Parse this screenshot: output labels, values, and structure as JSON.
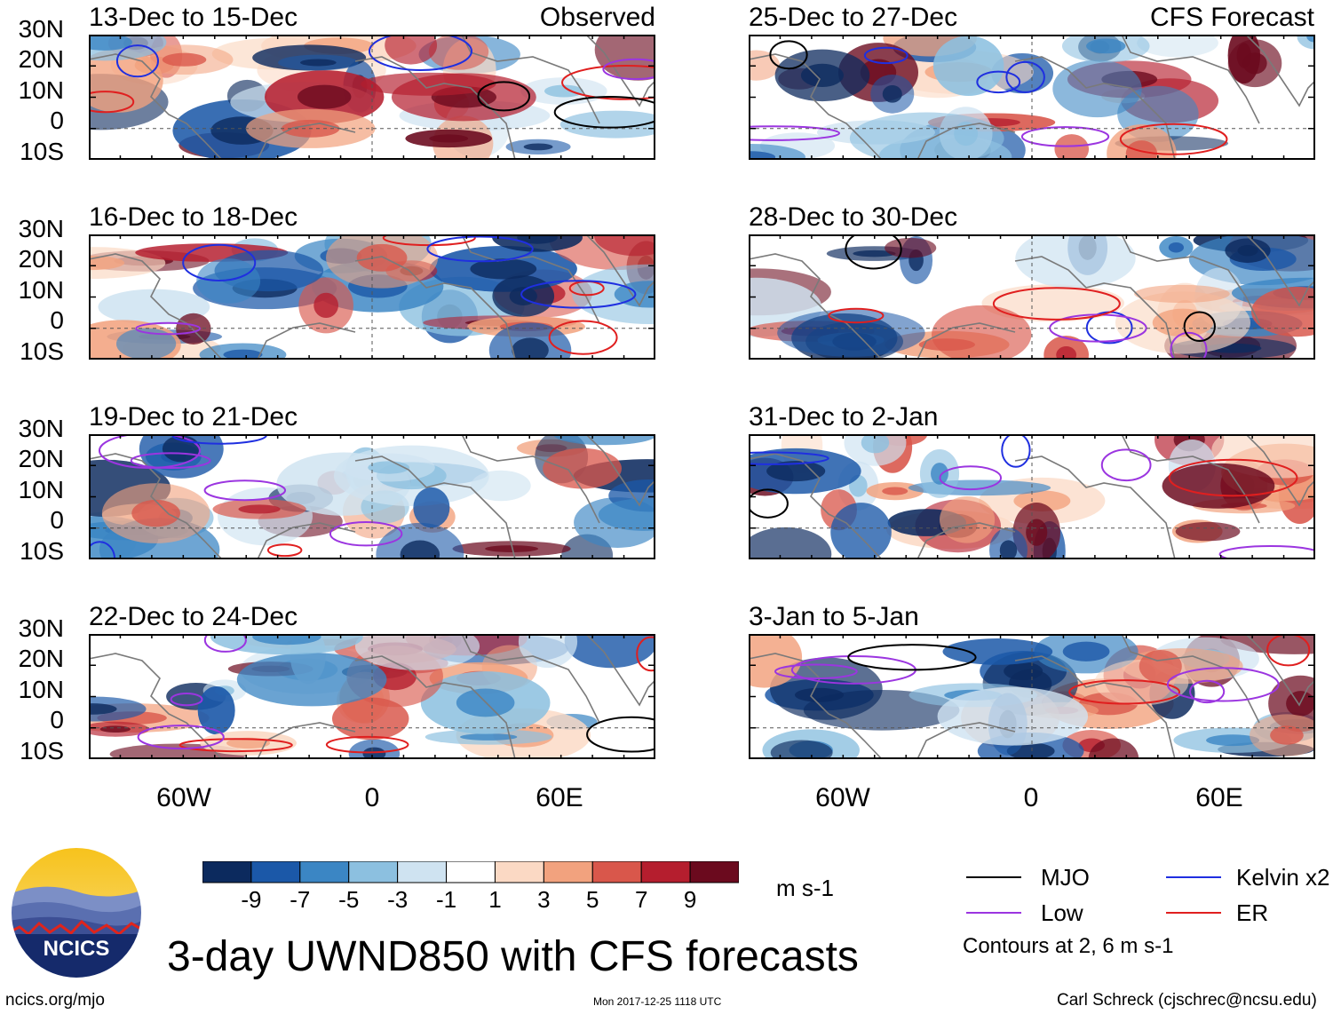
{
  "panels": [
    {
      "title": "13-Dec to 15-Dec",
      "tag": "Observed"
    },
    {
      "title": "25-Dec to 27-Dec",
      "tag": "CFS Forecast"
    },
    {
      "title": "16-Dec to 18-Dec",
      "tag": ""
    },
    {
      "title": "28-Dec to 30-Dec",
      "tag": ""
    },
    {
      "title": "19-Dec to 21-Dec",
      "tag": ""
    },
    {
      "title": "31-Dec to 2-Jan",
      "tag": ""
    },
    {
      "title": "22-Dec to 24-Dec",
      "tag": ""
    },
    {
      "title": "3-Jan to 5-Jan",
      "tag": ""
    }
  ],
  "lat_labels": [
    "30N",
    "20N",
    "10N",
    "0",
    "10S"
  ],
  "lon_labels": [
    "60W",
    "0",
    "60E"
  ],
  "colorbar": {
    "ticks": [
      "-9",
      "-7",
      "-5",
      "-3",
      "-1",
      "1",
      "3",
      "5",
      "7",
      "9"
    ],
    "colors": [
      "#0c2a5e",
      "#1b58a8",
      "#3b86c4",
      "#8cc0e0",
      "#cfe3f1",
      "#ffffff",
      "#fbd9c4",
      "#f2a27e",
      "#d9574b",
      "#b51e2e",
      "#6b0a1e"
    ],
    "units": "m s-1"
  },
  "legend": {
    "mjo": {
      "label": "MJO",
      "color": "#000000"
    },
    "kelvin": {
      "label": "Kelvin x2",
      "color": "#1f2fe0"
    },
    "low": {
      "label": "Low",
      "color": "#9b35e0"
    },
    "er": {
      "label": "ER",
      "color": "#e01f1f"
    },
    "note": "Contours at 2, 6 m s-1"
  },
  "title": "3-day UWND850 with CFS forecasts",
  "logo_text": "NCICS",
  "footer": {
    "url": "ncics.org/mjo",
    "timestamp": "Mon 2017-12-25 1118 UTC",
    "author": "Carl Schreck (cjschrec@ncsu.edu)"
  }
}
